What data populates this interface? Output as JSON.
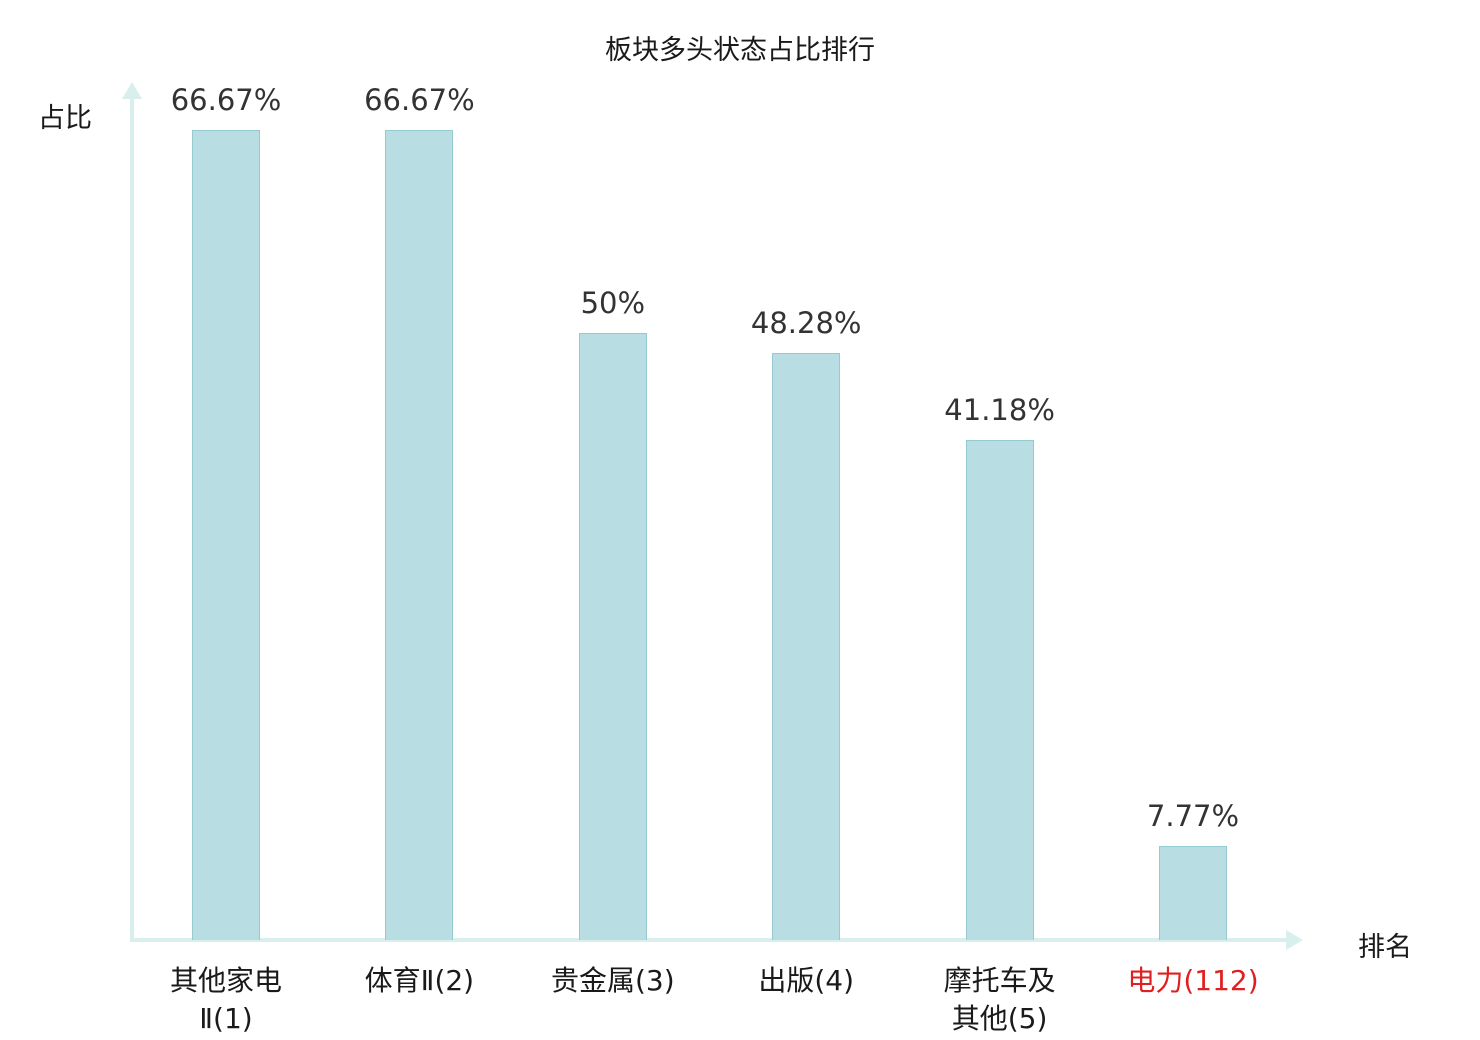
{
  "chart_data": {
    "type": "bar",
    "title": "板块多头状态占比排行",
    "ylabel": "占比",
    "xlabel": "排名",
    "categories": [
      "其他家电\nⅡ(1)",
      "体育Ⅱ(2)",
      "贵金属(3)",
      "出版(4)",
      "摩托车及\n其他(5)",
      "电力(112)"
    ],
    "values": [
      66.67,
      66.67,
      50,
      48.28,
      41.18,
      7.77
    ],
    "value_labels": [
      "66.67%",
      "66.67%",
      "50%",
      "48.28%",
      "41.18%",
      "7.77%"
    ],
    "ylim": [
      0,
      70
    ],
    "grid": false,
    "legend": "none",
    "bar_color": "#b8dee3",
    "bar_border_color": "#95cad1",
    "axis_color": "#d9efee",
    "value_label_color": "#333333",
    "category_label_color": "#1a1a1a",
    "highlight_index": 5,
    "highlight_color": "#e02020"
  }
}
